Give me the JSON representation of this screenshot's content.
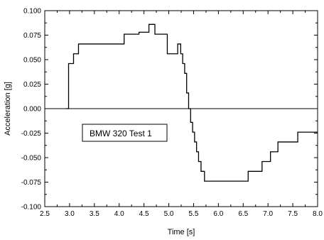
{
  "chart_data": {
    "type": "line",
    "xlabel": "Time [s]",
    "ylabel": "Acceleration [g]",
    "xlim": [
      2.5,
      8.0
    ],
    "ylim": [
      -0.1,
      0.1
    ],
    "xticks": [
      "2.5",
      "3.0",
      "3.5",
      "4.0",
      "4.5",
      "5.0",
      "5.5",
      "6.0",
      "6.5",
      "7.0",
      "7.5",
      "8.0"
    ],
    "yticks": [
      "0.100",
      "0.075",
      "0.050",
      "0.025",
      "0.000",
      "-0.025",
      "-0.050",
      "-0.075",
      "-0.100"
    ],
    "grid": false,
    "annotation": "BMW 320 Test 1",
    "zero_line": true,
    "series": [
      {
        "step": true,
        "color": "#000000",
        "x": [
          2.93,
          2.98,
          3.08,
          3.18,
          4.1,
          4.4,
          4.6,
          4.72,
          4.97,
          5.18,
          5.24,
          5.28,
          5.32,
          5.36,
          5.4,
          5.44,
          5.48,
          5.52,
          5.56,
          5.6,
          5.65,
          5.72,
          5.8,
          6.6,
          6.88,
          7.05,
          7.2,
          7.6,
          8.0
        ],
        "y": [
          0.0,
          0.046,
          0.056,
          0.066,
          0.076,
          0.078,
          0.086,
          0.076,
          0.056,
          0.066,
          0.056,
          0.046,
          0.036,
          0.016,
          0.0,
          -0.014,
          -0.024,
          -0.034,
          -0.044,
          -0.054,
          -0.064,
          -0.074,
          -0.074,
          -0.064,
          -0.054,
          -0.044,
          -0.034,
          -0.024,
          -0.024
        ]
      }
    ]
  }
}
